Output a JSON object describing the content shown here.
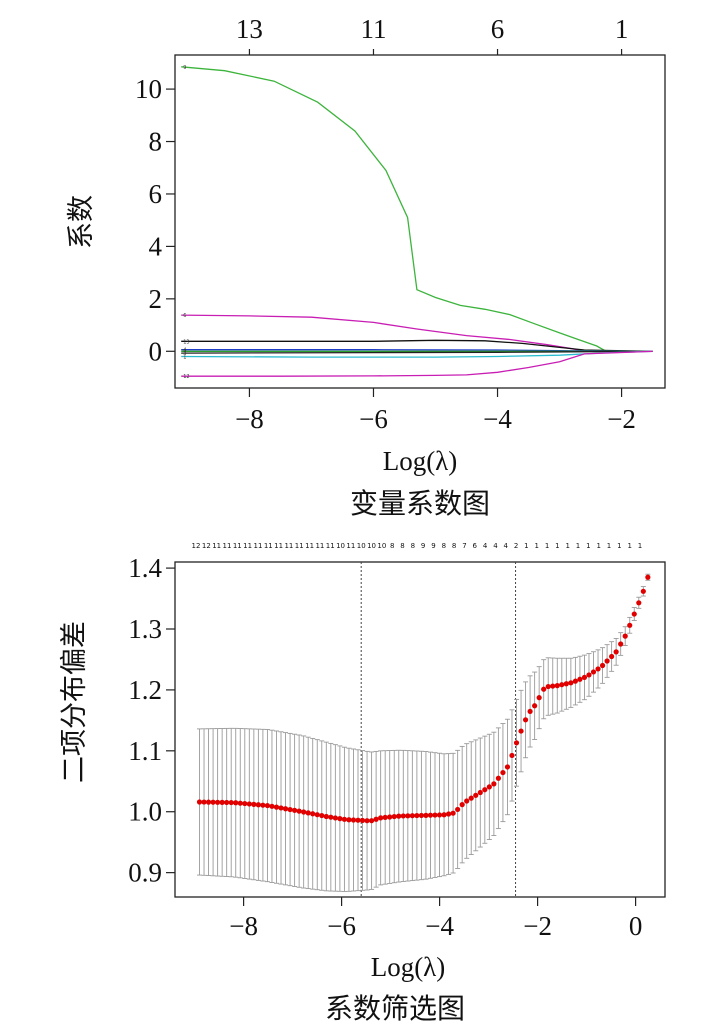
{
  "chart_data": [
    {
      "type": "line",
      "title": "变量系数图",
      "xlabel": "Log(λ)",
      "ylabel": "系数",
      "xlim": [
        -9.2,
        -1.3
      ],
      "ylim": [
        -1.4,
        11.3
      ],
      "x_ticks": [
        -8,
        -6,
        -4,
        -2
      ],
      "x_tick_labels": [
        "−8",
        "−6",
        "−4",
        "−2"
      ],
      "y_ticks": [
        0,
        2,
        4,
        6,
        8,
        10
      ],
      "y_tick_labels": [
        "0",
        "2",
        "4",
        "6",
        "8",
        "10"
      ],
      "top_axis": {
        "ticks": [
          -8.0,
          -6.0,
          -4.0,
          -2.0
        ],
        "labels": [
          "13",
          "11",
          "6",
          "1"
        ]
      },
      "grid": false,
      "series": [
        {
          "label": "9",
          "color": "#3cb43c",
          "x": [
            -9.1,
            -8.4,
            -7.6,
            -6.9,
            -6.3,
            -5.8,
            -5.45,
            -5.3,
            -5.0,
            -4.6,
            -4.2,
            -3.8,
            -3.4,
            -3.0,
            -2.7,
            -2.4,
            -2.25,
            -1.5
          ],
          "y": [
            10.85,
            10.7,
            10.3,
            9.5,
            8.4,
            6.9,
            5.1,
            2.35,
            2.05,
            1.75,
            1.6,
            1.4,
            1.05,
            0.7,
            0.45,
            0.2,
            0.0,
            0.0
          ]
        },
        {
          "label": "6",
          "color": "#c81eb4",
          "x": [
            -9.1,
            -8.0,
            -7.0,
            -6.0,
            -5.3,
            -4.5,
            -3.8,
            -3.2,
            -2.8,
            -2.6,
            -1.5
          ],
          "y": [
            1.38,
            1.35,
            1.3,
            1.1,
            0.85,
            0.6,
            0.45,
            0.25,
            0.1,
            0.0,
            0.0
          ]
        },
        {
          "label": "13",
          "color": "#111111",
          "x": [
            -9.1,
            -7.0,
            -6.0,
            -5.0,
            -4.2,
            -3.6,
            -3.0,
            -2.6,
            -1.5
          ],
          "y": [
            0.38,
            0.38,
            0.38,
            0.42,
            0.4,
            0.3,
            0.15,
            0.05,
            0.0
          ]
        },
        {
          "label": "4",
          "color": "#1e3cc8",
          "x": [
            -9.1,
            -6.0,
            -4.0,
            -2.8,
            -1.5
          ],
          "y": [
            0.06,
            0.06,
            0.05,
            0.02,
            0.0
          ]
        },
        {
          "label": "7",
          "color": "#2ca02c",
          "x": [
            -9.1,
            -6.0,
            -4.0,
            -2.8,
            -1.5
          ],
          "y": [
            0.0,
            0.0,
            0.0,
            0.0,
            0.0
          ]
        },
        {
          "label": "3",
          "color": "#222222",
          "x": [
            -9.1,
            -6.0,
            -4.0,
            -2.8,
            -1.5
          ],
          "y": [
            -0.07,
            -0.05,
            -0.04,
            -0.02,
            0.0
          ]
        },
        {
          "label": "1",
          "color": "#2bbcd0",
          "x": [
            -9.1,
            -7.0,
            -5.0,
            -4.0,
            -3.0,
            -2.2,
            -1.5
          ],
          "y": [
            -0.2,
            -0.22,
            -0.22,
            -0.2,
            -0.15,
            -0.05,
            0.0
          ]
        },
        {
          "label": "12",
          "color": "#c81eb4",
          "x": [
            -9.1,
            -7.5,
            -6.0,
            -5.0,
            -4.5,
            -4.0,
            -3.5,
            -3.0,
            -2.6,
            -1.5
          ],
          "y": [
            -0.95,
            -0.95,
            -0.94,
            -0.92,
            -0.9,
            -0.8,
            -0.62,
            -0.4,
            -0.1,
            0.0
          ]
        }
      ]
    },
    {
      "type": "scatter",
      "title": "系数筛选图",
      "xlabel": "Log(λ)",
      "ylabel": "二项分布偏差",
      "xlim": [
        -9.4,
        0.6
      ],
      "ylim": [
        0.86,
        1.41
      ],
      "x_ticks": [
        -8,
        -6,
        -4,
        -2,
        0
      ],
      "x_tick_labels": [
        "−8",
        "−6",
        "−4",
        "−2",
        "0"
      ],
      "y_ticks": [
        0.9,
        1.0,
        1.1,
        1.2,
        1.3,
        1.4
      ],
      "y_tick_labels": [
        "0.9",
        "1.0",
        "1.1",
        "1.2",
        "1.3",
        "1.4"
      ],
      "vlines": [
        -5.6,
        -2.45
      ],
      "top_axis": {
        "labels": [
          "12",
          "12",
          "11",
          "11",
          "11",
          "11",
          "11",
          "11",
          "11",
          "11",
          "11",
          "11",
          "11",
          "11",
          "10",
          "11",
          "10",
          "10",
          "10",
          "8",
          "8",
          "8",
          "9",
          "9",
          "8",
          "8",
          "7",
          "6",
          "4",
          "4",
          "4",
          "2",
          "1",
          "1",
          "1",
          "1",
          "1",
          "1",
          "1",
          "1",
          "1",
          "1",
          "1",
          "1"
        ]
      },
      "grid": false,
      "series": [
        {
          "name": "",
          "color": "#e00000",
          "key_points": {
            "x": [
              -8.9,
              -8.2,
              -7.5,
              -6.8,
              -6.3,
              -5.9,
              -5.4,
              -5.2,
              -4.8,
              -4.3,
              -3.9,
              -3.7,
              -3.5,
              -3.2,
              -2.9,
              -2.6,
              -2.4,
              -2.2,
              -2.05,
              -1.95,
              -1.85,
              -1.6,
              -1.3,
              -1.0,
              -0.7,
              -0.4,
              -0.2,
              0.0,
              0.15,
              0.25
            ],
            "y": [
              1.016,
              1.015,
              1.01,
              1.0,
              0.992,
              0.987,
              0.985,
              0.99,
              0.993,
              0.994,
              0.995,
              0.998,
              1.015,
              1.03,
              1.045,
              1.075,
              1.12,
              1.16,
              1.175,
              1.19,
              1.205,
              1.207,
              1.212,
              1.222,
              1.238,
              1.262,
              1.29,
              1.33,
              1.36,
              1.385
            ]
          },
          "key_err": [
            0.12,
            0.122,
            0.125,
            0.125,
            0.122,
            0.118,
            0.113,
            0.11,
            0.108,
            0.105,
            0.1,
            0.098,
            0.095,
            0.09,
            0.085,
            0.078,
            0.07,
            0.06,
            0.055,
            0.05,
            0.048,
            0.045,
            0.04,
            0.036,
            0.03,
            0.022,
            0.015,
            0.01,
            0.008,
            0.005
          ]
        }
      ]
    }
  ]
}
